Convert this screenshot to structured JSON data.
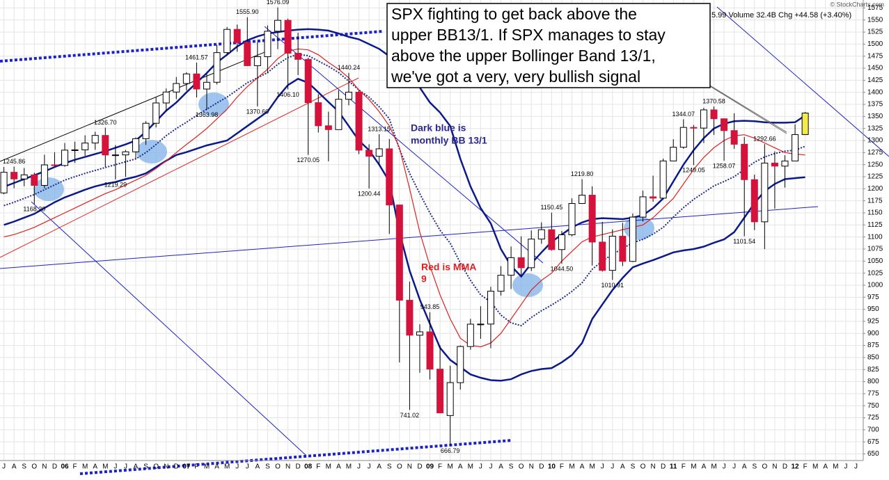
{
  "chart_data": {
    "type": "candlestick",
    "header": "5.99 Volume 32.4B Chg +44.58 (+3.40%)",
    "credit": "© StockCharts.com",
    "callout": [
      "SPX fighting to get back above the",
      "upper BB13/1. If SPX manages to stay",
      "above the upper Bollinger Band 13/1,",
      "we've got a very, very bullish signal"
    ],
    "note_blue": [
      "Dark blue is",
      "monthly BB 13/1"
    ],
    "note_red": [
      "Red is MMA",
      "9"
    ],
    "categories": [
      "J",
      "A",
      "S",
      "O",
      "N",
      "D",
      "06",
      "F",
      "M",
      "A",
      "M",
      "J",
      "J",
      "A",
      "S",
      "O",
      "N",
      "D",
      "07",
      "F",
      "M",
      "A",
      "M",
      "J",
      "J",
      "A",
      "S",
      "O",
      "N",
      "D",
      "08",
      "F",
      "M",
      "A",
      "M",
      "J",
      "J",
      "A",
      "S",
      "O",
      "N",
      "D",
      "09",
      "F",
      "M",
      "A",
      "M",
      "J",
      "J",
      "A",
      "S",
      "O",
      "N",
      "D",
      "10",
      "F",
      "M",
      "A",
      "M",
      "J",
      "J",
      "A",
      "S",
      "O",
      "N",
      "D",
      "11",
      "F",
      "M",
      "A",
      "M",
      "J",
      "J",
      "A",
      "S",
      "O",
      "N",
      "D",
      "12",
      "F",
      "M",
      "A",
      "M",
      "J",
      "J"
    ],
    "open": [
      1191.33,
      1234.18,
      1220.33,
      1228.81,
      1207.01,
      1249.48,
      1248.29,
      1280.08,
      1280.66,
      1294.83,
      1310.61,
      1270.09,
      1270.2,
      1276.66,
      1303.82,
      1335.85,
      1377.94,
      1400.63,
      1418.3,
      1438.24,
      1406.82,
      1420.86,
      1482.37,
      1530.62,
      1503.35,
      1455.27,
      1473.99,
      1526.75,
      1549.38,
      1481.14,
      1468.36,
      1378.55,
      1330.63,
      1322.7,
      1385.59,
      1400.38,
      1280,
      1267.38,
      1282.83,
      1166.36,
      968.75,
      896.24,
      903.25,
      825.88,
      729.57,
      797.87,
      872.81,
      919.14,
      919.32,
      987.48,
      1020.62,
      1057.08,
      1036.19,
      1095.63,
      1115.1,
      1073.87,
      1104.49,
      1169.43,
      1186.69,
      1089.41,
      1030.71,
      1101.6,
      1049.33,
      1141.2,
      1183.26,
      1180.55,
      1257.64,
      1286.12,
      1327.22,
      1325.83,
      1363.61,
      1345.2,
      1320.64,
      1292.28,
      1218.89,
      1131.42,
      1253.3,
      1246.96,
      1257.6,
      1312.41,
      null,
      null,
      null,
      null,
      null
    ],
    "high": [
      1245.15,
      1245.86,
      1243.13,
      1233.34,
      1270.64,
      1275.8,
      1294.9,
      1297.57,
      1310.88,
      1318.16,
      1326.7,
      1290.68,
      1280.42,
      1306.74,
      1340.28,
      1389.45,
      1407.89,
      1431.81,
      1441.61,
      1461.57,
      1438.89,
      1498.02,
      1535.56,
      1540.56,
      1555.9,
      1503.89,
      1538.74,
      1576.09,
      1552.76,
      1523.57,
      1471.77,
      1396.02,
      1359.68,
      1404.57,
      1440.24,
      1404.05,
      1292.17,
      1313.15,
      1303.04,
      1167.03,
      1007.51,
      918.85,
      943.85,
      875.01,
      832.98,
      875.0,
      930.17,
      956.23,
      996.68,
      1039.47,
      1080.15,
      1101.36,
      1113.69,
      1130.38,
      1150.45,
      1112.42,
      1180.16,
      1219.8,
      1205.13,
      1131.23,
      1115.79,
      1129.24,
      1148.67,
      1196.14,
      1227.08,
      1262.6,
      1302.67,
      1344.07,
      1332.28,
      1367.9,
      1370.58,
      1345.2,
      1356.48,
      1307.38,
      1229.29,
      1292.66,
      1277.55,
      1269.37,
      1333.47,
      1359.0,
      null,
      null,
      null,
      null,
      null
    ],
    "low": [
      1188.5,
      1201.07,
      1205.35,
      1168.2,
      1201.07,
      1246.59,
      1245.74,
      1253.61,
      1268.42,
      1280.74,
      1245.34,
      1219.29,
      1224.54,
      1261.3,
      1290.93,
      1327.1,
      1360.98,
      1385.93,
      1403.97,
      1389.42,
      1363.98,
      1416.37,
      1476.7,
      1484.18,
      1454.25,
      1370.6,
      1439.29,
      1489.56,
      1406.1,
      1435.65,
      1270.05,
      1316.75,
      1256.98,
      1324.35,
      1373.07,
      1272,
      1200.44,
      1248.59,
      1106.39,
      839.8,
      741.02,
      818.41,
      804.3,
      734.52,
      666.79,
      783.35,
      866.1,
      888.86,
      869.32,
      978.51,
      991.97,
      1019.95,
      1029.38,
      1085.89,
      1071.59,
      1044.5,
      1101.36,
      1170.69,
      1040.78,
      1028.33,
      1010.91,
      1039.7,
      1048.08,
      1131.87,
      1173,
      1179.35,
      1257.62,
      1282.86,
      1249.05,
      1294.7,
      1311.8,
      1258.07,
      1282.86,
      1101.54,
      1114.22,
      1074.77,
      1158.66,
      1202.37,
      1257.6,
      1312.0,
      null,
      null,
      null,
      null,
      null
    ],
    "close": [
      1234.18,
      1220.33,
      1228.81,
      1207.01,
      1249.48,
      1248.29,
      1280.08,
      1280.66,
      1294.83,
      1310.61,
      1270.09,
      1270.2,
      1276.66,
      1303.82,
      1335.85,
      1377.94,
      1400.63,
      1418.3,
      1438.24,
      1406.82,
      1420.86,
      1482.37,
      1530.62,
      1503.35,
      1455.27,
      1473.99,
      1526.75,
      1549.38,
      1481.14,
      1468.36,
      1378.55,
      1330.63,
      1322.7,
      1385.59,
      1400.38,
      1280,
      1267.38,
      1282.83,
      1166.36,
      968.75,
      896.24,
      903.25,
      825.88,
      735.09,
      797.87,
      872.81,
      919.14,
      919.32,
      987.48,
      1020.62,
      1057.08,
      1036.19,
      1095.63,
      1115.1,
      1073.87,
      1104.49,
      1169.43,
      1186.69,
      1089.41,
      1030.71,
      1101.6,
      1049.33,
      1141.2,
      1183.26,
      1180.55,
      1257.64,
      1286.12,
      1327.22,
      1325.83,
      1363.61,
      1345.2,
      1320.64,
      1292.28,
      1218.89,
      1131.42,
      1253.3,
      1246.96,
      1257.6,
      1312.41,
      1356.99,
      null,
      null,
      null,
      null,
      null
    ],
    "high_labels": [
      null,
      "1245.86",
      null,
      null,
      null,
      null,
      null,
      null,
      null,
      null,
      "1326.70",
      null,
      null,
      null,
      null,
      null,
      null,
      null,
      null,
      "1461.57",
      null,
      null,
      null,
      null,
      "1555.90",
      null,
      null,
      "1576.09",
      null,
      null,
      null,
      null,
      null,
      null,
      "1440.24",
      null,
      null,
      "1313.15",
      null,
      null,
      null,
      null,
      "943.85",
      null,
      null,
      null,
      null,
      null,
      null,
      null,
      null,
      null,
      null,
      null,
      "1150.45",
      null,
      null,
      "1219.80",
      null,
      null,
      null,
      null,
      null,
      null,
      null,
      null,
      null,
      "1344.07",
      null,
      null,
      "1370.58",
      null,
      null,
      null,
      null,
      "1292.66",
      null,
      null,
      null,
      null,
      null,
      null,
      null,
      null,
      null
    ],
    "low_labels": [
      null,
      null,
      null,
      "1168.20",
      null,
      null,
      null,
      null,
      null,
      null,
      null,
      "1219.29",
      null,
      null,
      null,
      null,
      null,
      null,
      null,
      null,
      "1363.98",
      null,
      null,
      null,
      null,
      "1370.60",
      null,
      null,
      "1406.10",
      null,
      "1270.05",
      null,
      null,
      null,
      null,
      null,
      "1200.44",
      null,
      null,
      null,
      "741.02",
      null,
      null,
      null,
      "666.79",
      null,
      null,
      null,
      null,
      null,
      null,
      null,
      null,
      null,
      null,
      "1044.50",
      null,
      null,
      null,
      null,
      "1010.91",
      null,
      null,
      null,
      null,
      null,
      null,
      null,
      "1249.05",
      null,
      null,
      "1258.07",
      null,
      "1101.54",
      null,
      null,
      null,
      null,
      null,
      null,
      null,
      null,
      null,
      null,
      null
    ],
    "up_color": "#ffffff",
    "down_color": "#d4123b",
    "last_color": "#f4e94e",
    "lines": [
      {
        "color": "#0a1a8c",
        "values": [
          1204,
          1212,
          1220,
          1228,
          1236,
          1245,
          1253,
          1260,
          1266,
          1272,
          1278,
          1285,
          1292,
          1300,
          1318,
          1340,
          1362,
          1379,
          1400,
          1420,
          1440,
          1462,
          1478,
          1495,
          1508,
          1516,
          1522,
          1525,
          1528,
          1530,
          1531,
          1530,
          1528,
          1522,
          1515,
          1510,
          1500,
          1490,
          1475,
          1455,
          1435,
          1410,
          1379,
          1358,
          1330,
          1262,
          1205,
          1160,
          1128,
          1075,
          1040,
          1018,
          1045,
          1068,
          1090,
          1105,
          1120,
          1130,
          1137,
          1139,
          1138,
          1137,
          1140,
          1145,
          1160,
          1180,
          1215,
          1250,
          1280,
          1305,
          1325,
          1335,
          1340,
          1341,
          1340,
          1338,
          1337,
          1337,
          1338,
          1352,
          null,
          null,
          null,
          null,
          null
        ]
      },
      {
        "color": "#0a1a8c",
        "values": [
          1125,
          1132,
          1140,
          1148,
          1160,
          1172,
          1182,
          1190,
          1198,
          1205,
          1210,
          1214,
          1220,
          1225,
          1232,
          1245,
          1258,
          1270,
          1276,
          1283,
          1290,
          1295,
          1300,
          1315,
          1330,
          1345,
          1360,
          1390,
          1415,
          1428,
          1420,
          1400,
          1380,
          1360,
          1330,
          1300,
          1280,
          1250,
          1215,
          1110,
          1030,
          970,
          920,
          870,
          845,
          830,
          815,
          808,
          803,
          802,
          805,
          815,
          822,
          826,
          828,
          840,
          855,
          880,
          930,
          960,
          990,
          1015,
          1037,
          1045,
          1052,
          1060,
          1068,
          1072,
          1075,
          1080,
          1088,
          1095,
          1110,
          1140,
          1170,
          1195,
          1210,
          1220,
          1222,
          1224,
          null,
          null,
          null,
          null,
          null
        ]
      },
      {
        "color": "#1c2a8a",
        "dotted": true,
        "values": [
          1165,
          1172,
          1180,
          1188,
          1198,
          1208,
          1218,
          1225,
          1232,
          1238,
          1244,
          1250,
          1256,
          1262,
          1275,
          1292,
          1310,
          1325,
          1338,
          1352,
          1365,
          1378,
          1390,
          1405,
          1420,
          1430,
          1441,
          1458,
          1472,
          1479,
          1476,
          1465,
          1454,
          1441,
          1423,
          1405,
          1390,
          1370,
          1345,
          1282,
          1232,
          1190,
          1150,
          1114,
          1087,
          1046,
          1010,
          980,
          965,
          938,
          922,
          916,
          933,
          947,
          959,
          972,
          987,
          1005,
          1033,
          1050,
          1064,
          1076,
          1088,
          1095,
          1106,
          1120,
          1141,
          1161,
          1178,
          1192,
          1206,
          1215,
          1225,
          1240,
          1255,
          1266,
          1273,
          1278,
          1280,
          1288,
          null,
          null,
          null,
          null,
          null
        ]
      },
      {
        "color": "#e0201e",
        "values": [
          1100,
          1105,
          1112,
          1120,
          1130,
          1140,
          1150,
          1160,
          1170,
          1180,
          1190,
          1198,
          1208,
          1218,
          1228,
          1242,
          1258,
          1275,
          1292,
          1308,
          1325,
          1345,
          1365,
          1390,
          1412,
          1430,
          1448,
          1470,
          1485,
          1490,
          1488,
          1478,
          1462,
          1448,
          1430,
          1405,
          1385,
          1360,
          1330,
          1285,
          1200,
          1110,
          1040,
          980,
          930,
          890,
          875,
          872,
          880,
          900,
          930,
          960,
          990,
          1010,
          1025,
          1050,
          1070,
          1090,
          1100,
          1105,
          1110,
          1115,
          1120,
          1125,
          1140,
          1160,
          1180,
          1210,
          1240,
          1265,
          1285,
          1300,
          1310,
          1312,
          1305,
          1295,
          1285,
          1275,
          1272,
          1270,
          null,
          null,
          null,
          null,
          null
        ]
      }
    ],
    "ylim": [
      636.3,
      1591.5
    ],
    "yticks": [
      650,
      675,
      700,
      725,
      750,
      775,
      800,
      825,
      850,
      875,
      900,
      925,
      950,
      975,
      1000,
      1025,
      1050,
      1075,
      1100,
      1125,
      1150,
      1175,
      1200,
      1225,
      1250,
      1275,
      1300,
      1325,
      1350,
      1375,
      1400,
      1425,
      1450,
      1475,
      1500,
      1525,
      1550,
      1575
    ],
    "grid": true
  }
}
